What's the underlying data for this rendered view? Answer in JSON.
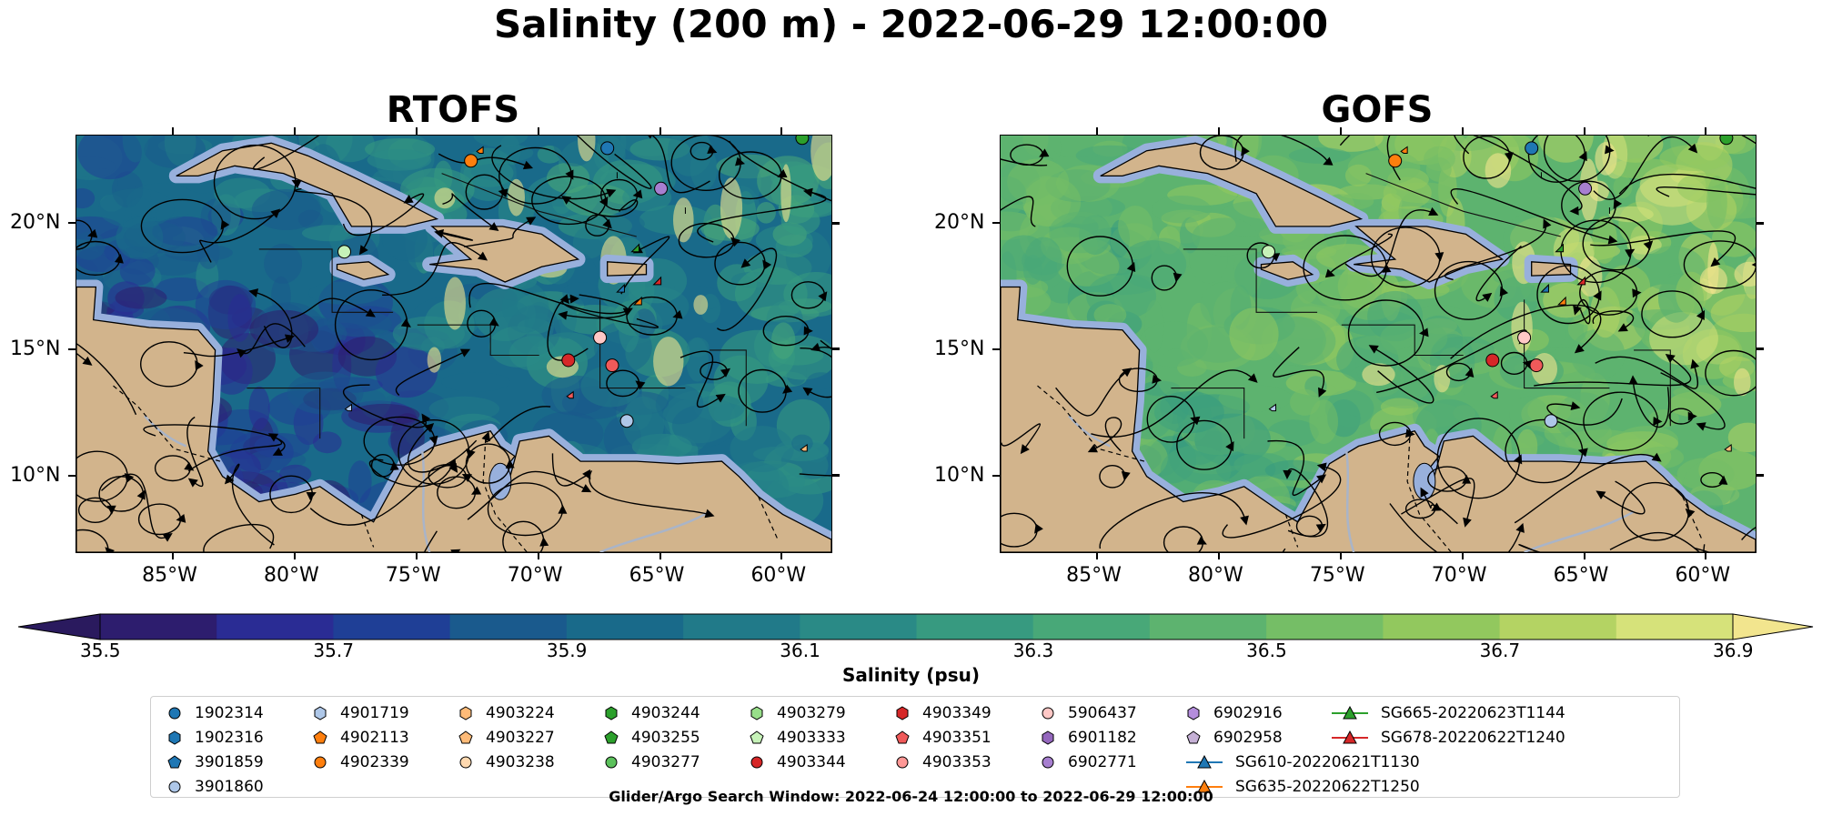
{
  "suptitle": "Salinity (200 m) - 2022-06-29 12:00:00",
  "maps": [
    {
      "title": "RTOFS",
      "variant": "rtofs"
    },
    {
      "title": "GOFS",
      "variant": "gofs"
    }
  ],
  "lon_labels": [
    "85°W",
    "80°W",
    "75°W",
    "70°W",
    "65°W",
    "60°W"
  ],
  "lat_labels": [
    "20°N",
    "15°N",
    "10°N"
  ],
  "extent": {
    "lon": [
      -89,
      -58
    ],
    "lat": [
      7,
      23.5
    ]
  },
  "colorbar": {
    "label": "Salinity (psu)",
    "ticks": [
      "35.5",
      "35.7",
      "35.9",
      "36.1",
      "36.3",
      "36.5",
      "36.7",
      "36.9"
    ],
    "vmin": 35.5,
    "vmax": 36.9,
    "levels": 14,
    "extend": "both",
    "colors": [
      "#2d1d6e",
      "#2a2c94",
      "#1f3f96",
      "#1a5a8d",
      "#196a8a",
      "#217a89",
      "#2a8a86",
      "#379a80",
      "#48a878",
      "#5db36f",
      "#75be66",
      "#92c85e",
      "#b4d363",
      "#d6e27a"
    ],
    "under_color": "#2a1a5e",
    "over_color": "#f2e58e"
  },
  "map_colors": {
    "land": "#d2b48c",
    "shelf": "#98b0dc",
    "river": "#a9b4c8",
    "stream": "#000000"
  },
  "legend": [
    {
      "label": "1902314",
      "marker": "circle",
      "color": "#1f77b4"
    },
    {
      "label": "1902316",
      "marker": "hexagon",
      "color": "#1f77b4"
    },
    {
      "label": "3901859",
      "marker": "pentagon",
      "color": "#1f77b4"
    },
    {
      "label": "3901860",
      "marker": "circle",
      "color": "#aec7e8"
    },
    {
      "label": "4901719",
      "marker": "hexagon",
      "color": "#aec7e8"
    },
    {
      "label": "4902113",
      "marker": "pentagon",
      "color": "#ff7f0e"
    },
    {
      "label": "4902339",
      "marker": "circle",
      "color": "#ff7f0e"
    },
    {
      "label": "4903224",
      "marker": "hexagon",
      "color": "#ffbb78"
    },
    {
      "label": "4903227",
      "marker": "pentagon",
      "color": "#ffbb78"
    },
    {
      "label": "4903238",
      "marker": "circle",
      "color": "#ffd9b0"
    },
    {
      "label": "4903244",
      "marker": "hexagon",
      "color": "#2ca02c"
    },
    {
      "label": "4903255",
      "marker": "pentagon",
      "color": "#2ca02c"
    },
    {
      "label": "4903277",
      "marker": "circle",
      "color": "#5cc15c"
    },
    {
      "label": "4903279",
      "marker": "hexagon",
      "color": "#98df8a"
    },
    {
      "label": "4903333",
      "marker": "pentagon",
      "color": "#c6f2b8"
    },
    {
      "label": "4903344",
      "marker": "circle",
      "color": "#d62728"
    },
    {
      "label": "4903349",
      "marker": "hexagon",
      "color": "#d62728"
    },
    {
      "label": "4903351",
      "marker": "pentagon",
      "color": "#f05a5a"
    },
    {
      "label": "4903353",
      "marker": "circle",
      "color": "#ff9896"
    },
    {
      "label": "5906437",
      "marker": "circle",
      "color": "#ffc8c6"
    },
    {
      "label": "6901182",
      "marker": "hexagon",
      "color": "#9467bd"
    },
    {
      "label": "6902771",
      "marker": "circle",
      "color": "#a77fd0"
    },
    {
      "label": "6902916",
      "marker": "hexagon",
      "color": "#b48ddc"
    },
    {
      "label": "6902958",
      "marker": "pentagon",
      "color": "#c5b0d5"
    },
    {
      "label": "SG610-20220621T1130",
      "marker": "triangle-line",
      "color": "#1f77b4"
    },
    {
      "label": "SG635-20220622T1250",
      "marker": "triangle-line",
      "color": "#ff7f0e"
    },
    {
      "label": "SG665-20220623T1144",
      "marker": "triangle-line",
      "color": "#2ca02c"
    },
    {
      "label": "SG678-20220622T1240",
      "marker": "triangle-line",
      "color": "#d62728"
    }
  ],
  "footnote": "Glider/Argo Search Window: 2022-06-24 12:00:00 to 2022-06-29 12:00:00"
}
